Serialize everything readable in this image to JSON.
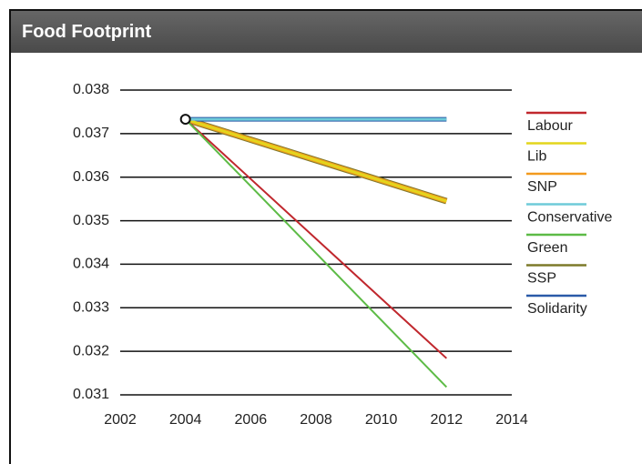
{
  "chart_data": {
    "type": "line",
    "title": "Food Footprint",
    "x": [
      2004,
      2012
    ],
    "series": [
      {
        "name": "Labour",
        "color": "#c0272d",
        "values": [
          0.03733,
          0.03184
        ]
      },
      {
        "name": "Lib",
        "color": "#e3d51c",
        "values": [
          0.03733,
          0.03545
        ]
      },
      {
        "name": "SNP",
        "color": "#f39a1e",
        "values": [
          0.03733,
          0.03545
        ]
      },
      {
        "name": "Conservative",
        "color": "#6fcbd9",
        "values": [
          0.03733,
          0.03733
        ]
      },
      {
        "name": "Green",
        "color": "#5dbb46",
        "values": [
          0.03733,
          0.03118
        ]
      },
      {
        "name": "SSP",
        "color": "#7d7a2a",
        "values": [
          0.03733,
          0.03545
        ]
      },
      {
        "name": "Solidarity",
        "color": "#2a5aa8",
        "values": [
          0.03733,
          0.03733
        ]
      }
    ],
    "xlim": [
      2002,
      2014
    ],
    "xticks": [
      2002,
      2004,
      2006,
      2008,
      2010,
      2012,
      2014
    ],
    "ylim": [
      0.031,
      0.038
    ],
    "yticks": [
      0.031,
      0.032,
      0.033,
      0.034,
      0.035,
      0.036,
      0.037,
      0.038
    ],
    "grid": true,
    "legend": "right"
  }
}
